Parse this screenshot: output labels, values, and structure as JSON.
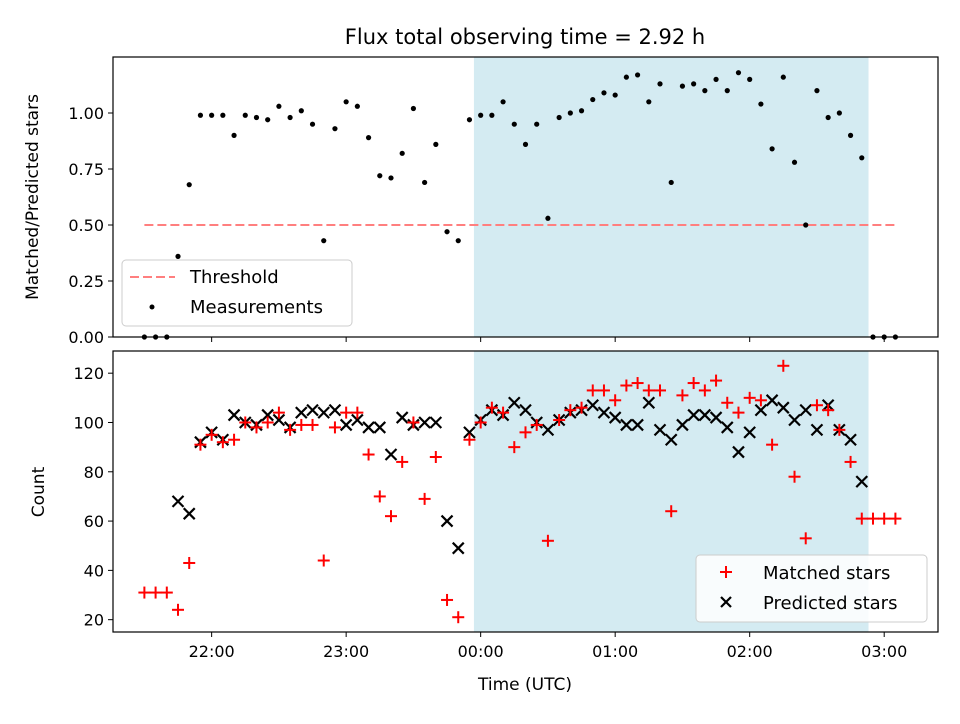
{
  "chart_data": [
    {
      "type": "scatter",
      "title": "Flux total observing time = 2.92 h",
      "xlabel": "",
      "ylabel": "Matched/Predicted stars",
      "xlim": [
        "21:16",
        "03:24"
      ],
      "ylim": [
        0,
        1.25
      ],
      "yticks": [
        "0.00",
        "0.25",
        "0.50",
        "0.75",
        "1.00"
      ],
      "shaded_region": {
        "start": "23:57",
        "end": "02:53",
        "color": "#add8e6"
      },
      "legend": {
        "position": "lower-left",
        "entries": [
          "Threshold",
          "Measurements"
        ]
      },
      "series": [
        {
          "name": "Threshold",
          "style": "dashed-line",
          "color": "#ff7f7f",
          "x": [
            "21:30",
            "03:05"
          ],
          "y": [
            0.5,
            0.5
          ]
        },
        {
          "name": "Measurements",
          "style": "dot",
          "color": "#000000",
          "x": [
            "21:30",
            "21:35",
            "21:40",
            "21:45",
            "21:50",
            "21:55",
            "22:00",
            "22:05",
            "22:10",
            "22:15",
            "22:20",
            "22:25",
            "22:30",
            "22:35",
            "22:40",
            "22:45",
            "22:50",
            "22:55",
            "23:00",
            "23:05",
            "23:10",
            "23:15",
            "23:20",
            "23:25",
            "23:30",
            "23:35",
            "23:40",
            "23:45",
            "23:50",
            "23:55",
            "24:00",
            "24:05",
            "24:10",
            "24:15",
            "24:20",
            "24:25",
            "24:30",
            "24:35",
            "24:40",
            "24:45",
            "24:50",
            "24:55",
            "25:00",
            "25:05",
            "25:10",
            "25:15",
            "25:20",
            "25:25",
            "25:30",
            "25:35",
            "25:40",
            "25:45",
            "25:50",
            "25:55",
            "26:00",
            "26:05",
            "26:10",
            "26:15",
            "26:20",
            "26:25",
            "26:30",
            "26:35",
            "26:40",
            "26:45",
            "26:50",
            "26:55",
            "27:00",
            "27:05"
          ],
          "y": [
            0.0,
            0.0,
            0.0,
            0.36,
            0.68,
            0.99,
            0.99,
            0.99,
            0.9,
            0.99,
            0.98,
            0.97,
            1.03,
            0.98,
            1.01,
            0.95,
            0.43,
            0.93,
            1.05,
            1.03,
            0.89,
            0.72,
            0.71,
            0.82,
            1.02,
            0.69,
            0.86,
            0.47,
            0.43,
            0.97,
            0.99,
            0.99,
            1.05,
            0.95,
            0.86,
            0.95,
            0.53,
            0.98,
            1.0,
            1.01,
            1.06,
            1.09,
            1.08,
            1.16,
            1.17,
            1.05,
            1.13,
            0.69,
            1.12,
            1.13,
            1.1,
            1.15,
            1.1,
            1.18,
            1.15,
            1.04,
            0.84,
            1.16,
            0.78,
            0.5,
            1.1,
            0.98,
            1.0,
            0.9,
            0.8,
            0.0,
            0.0,
            0.0
          ]
        }
      ]
    },
    {
      "type": "scatter",
      "title": "",
      "xlabel": "Time (UTC)",
      "ylabel": "Count",
      "xlim": [
        "21:16",
        "03:24"
      ],
      "ylim": [
        15,
        129
      ],
      "xticks": [
        "22:00",
        "23:00",
        "00:00",
        "01:00",
        "02:00",
        "03:00"
      ],
      "yticks": [
        "20",
        "40",
        "60",
        "80",
        "100",
        "120"
      ],
      "shaded_region": {
        "start": "23:57",
        "end": "02:53",
        "color": "#add8e6"
      },
      "legend": {
        "position": "lower-right",
        "entries": [
          "Matched stars",
          "Predicted stars"
        ]
      },
      "series": [
        {
          "name": "Matched stars",
          "marker": "+",
          "color": "#ff0000",
          "x": [
            "21:30",
            "21:35",
            "21:40",
            "21:45",
            "21:50",
            "21:55",
            "22:00",
            "22:05",
            "22:10",
            "22:15",
            "22:20",
            "22:25",
            "22:30",
            "22:35",
            "22:40",
            "22:45",
            "22:50",
            "22:55",
            "23:00",
            "23:05",
            "23:10",
            "23:15",
            "23:20",
            "23:25",
            "23:30",
            "23:35",
            "23:40",
            "23:45",
            "23:50",
            "23:55",
            "24:00",
            "24:05",
            "24:10",
            "24:15",
            "24:20",
            "24:25",
            "24:30",
            "24:35",
            "24:40",
            "24:45",
            "24:50",
            "24:55",
            "25:00",
            "25:05",
            "25:10",
            "25:15",
            "25:20",
            "25:25",
            "25:30",
            "25:35",
            "25:40",
            "25:45",
            "25:50",
            "25:55",
            "26:00",
            "26:05",
            "26:10",
            "26:15",
            "26:20",
            "26:25",
            "26:30",
            "26:35",
            "26:40",
            "26:45",
            "26:50",
            "26:55",
            "27:00",
            "27:05"
          ],
          "y": [
            31,
            31,
            31,
            24,
            43,
            91,
            95,
            92,
            93,
            100,
            98,
            100,
            104,
            97,
            99,
            99,
            44,
            98,
            104,
            104,
            87,
            70,
            62,
            84,
            100,
            69,
            86,
            28,
            21,
            93,
            100,
            106,
            104,
            90,
            96,
            99,
            52,
            101,
            105,
            106,
            113,
            113,
            109,
            115,
            116,
            113,
            113,
            64,
            111,
            116,
            113,
            117,
            108,
            104,
            110,
            109,
            91,
            123,
            78,
            53,
            107,
            105,
            97,
            84,
            61,
            61,
            61,
            61
          ]
        },
        {
          "name": "Predicted stars",
          "marker": "x",
          "color": "#000000",
          "x": [
            "21:45",
            "21:50",
            "21:55",
            "22:00",
            "22:05",
            "22:10",
            "22:15",
            "22:20",
            "22:25",
            "22:30",
            "22:35",
            "22:40",
            "22:45",
            "22:50",
            "22:55",
            "23:00",
            "23:05",
            "23:10",
            "23:15",
            "23:20",
            "23:25",
            "23:30",
            "23:35",
            "23:40",
            "23:45",
            "23:50",
            "23:55",
            "24:00",
            "24:05",
            "24:10",
            "24:15",
            "24:20",
            "24:25",
            "24:30",
            "24:35",
            "24:40",
            "24:45",
            "24:50",
            "24:55",
            "25:00",
            "25:05",
            "25:10",
            "25:15",
            "25:20",
            "25:25",
            "25:30",
            "25:35",
            "25:40",
            "25:45",
            "25:50",
            "25:55",
            "26:00",
            "26:05",
            "26:10",
            "26:15",
            "26:20",
            "26:25",
            "26:30",
            "26:35",
            "26:40",
            "26:45",
            "26:50"
          ],
          "y": [
            68,
            63,
            92,
            96,
            93,
            103,
            100,
            99,
            103,
            101,
            98,
            104,
            105,
            104,
            105,
            99,
            101,
            98,
            98,
            87,
            102,
            99,
            100,
            100,
            60,
            49,
            96,
            101,
            105,
            103,
            108,
            105,
            100,
            97,
            101,
            104,
            105,
            107,
            104,
            102,
            99,
            99,
            108,
            97,
            93,
            99,
            103,
            103,
            102,
            98,
            88,
            96,
            105,
            109,
            106,
            101,
            105,
            97,
            107,
            97,
            93,
            76
          ]
        }
      ]
    }
  ]
}
